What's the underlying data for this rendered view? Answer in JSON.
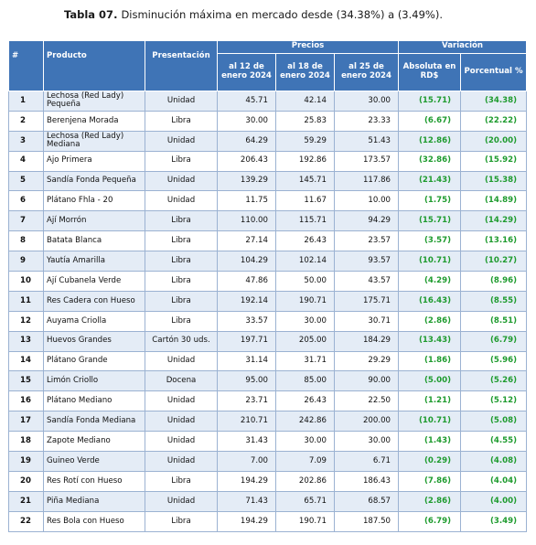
{
  "caption": {
    "label": "Tabla 07.",
    "text": "Disminución máxima en mercado desde (34.38%) a (3.49%)."
  },
  "header": {
    "num": "#",
    "producto": "Producto",
    "presentacion": "Presentación",
    "precios": "Precios",
    "variacion": "Variación",
    "col_fecha1": "al 12 de enero 2024",
    "col_fecha2": "al 18 de enero 2024",
    "col_fecha3": "al 25 de enero 2024",
    "col_absoluta": "Absoluta en RD$",
    "col_porcentual": "Porcentual %"
  },
  "rows": [
    {
      "num": "1",
      "producto": "Lechosa (Red Lady) Pequeña",
      "presentacion": "Unidad",
      "p1": "45.71",
      "p2": "42.14",
      "p3": "30.00",
      "abs": "(15.71)",
      "pct": "(34.38)"
    },
    {
      "num": "2",
      "producto": "Berenjena Morada",
      "presentacion": "Libra",
      "p1": "30.00",
      "p2": "25.83",
      "p3": "23.33",
      "abs": "(6.67)",
      "pct": "(22.22)"
    },
    {
      "num": "3",
      "producto": "Lechosa (Red Lady) Mediana",
      "presentacion": "Unidad",
      "p1": "64.29",
      "p2": "59.29",
      "p3": "51.43",
      "abs": "(12.86)",
      "pct": "(20.00)"
    },
    {
      "num": "4",
      "producto": "Ajo Primera",
      "presentacion": "Libra",
      "p1": "206.43",
      "p2": "192.86",
      "p3": "173.57",
      "abs": "(32.86)",
      "pct": "(15.92)"
    },
    {
      "num": "5",
      "producto": "Sandía Fonda Pequeña",
      "presentacion": "Unidad",
      "p1": "139.29",
      "p2": "145.71",
      "p3": "117.86",
      "abs": "(21.43)",
      "pct": "(15.38)"
    },
    {
      "num": "6",
      "producto": "Plátano Fhla - 20",
      "presentacion": "Unidad",
      "p1": "11.75",
      "p2": "11.67",
      "p3": "10.00",
      "abs": "(1.75)",
      "pct": "(14.89)"
    },
    {
      "num": "7",
      "producto": "Ají Morrón",
      "presentacion": "Libra",
      "p1": "110.00",
      "p2": "115.71",
      "p3": "94.29",
      "abs": "(15.71)",
      "pct": "(14.29)"
    },
    {
      "num": "8",
      "producto": "Batata Blanca",
      "presentacion": "Libra",
      "p1": "27.14",
      "p2": "26.43",
      "p3": "23.57",
      "abs": "(3.57)",
      "pct": "(13.16)"
    },
    {
      "num": "9",
      "producto": "Yautía Amarilla",
      "presentacion": "Libra",
      "p1": "104.29",
      "p2": "102.14",
      "p3": "93.57",
      "abs": "(10.71)",
      "pct": "(10.27)"
    },
    {
      "num": "10",
      "producto": "Ají Cubanela Verde",
      "presentacion": "Libra",
      "p1": "47.86",
      "p2": "50.00",
      "p3": "43.57",
      "abs": "(4.29)",
      "pct": "(8.96)"
    },
    {
      "num": "11",
      "producto": "Res Cadera con Hueso",
      "presentacion": "Libra",
      "p1": "192.14",
      "p2": "190.71",
      "p3": "175.71",
      "abs": "(16.43)",
      "pct": "(8.55)"
    },
    {
      "num": "12",
      "producto": "Auyama Criolla",
      "presentacion": "Libra",
      "p1": "33.57",
      "p2": "30.00",
      "p3": "30.71",
      "abs": "(2.86)",
      "pct": "(8.51)"
    },
    {
      "num": "13",
      "producto": "Huevos Grandes",
      "presentacion": "Cartón 30 uds.",
      "p1": "197.71",
      "p2": "205.00",
      "p3": "184.29",
      "abs": "(13.43)",
      "pct": "(6.79)"
    },
    {
      "num": "14",
      "producto": "Plátano Grande",
      "presentacion": "Unidad",
      "p1": "31.14",
      "p2": "31.71",
      "p3": "29.29",
      "abs": "(1.86)",
      "pct": "(5.96)"
    },
    {
      "num": "15",
      "producto": "Limón Criollo",
      "presentacion": "Docena",
      "p1": "95.00",
      "p2": "85.00",
      "p3": "90.00",
      "abs": "(5.00)",
      "pct": "(5.26)"
    },
    {
      "num": "16",
      "producto": "Plátano Mediano",
      "presentacion": "Unidad",
      "p1": "23.71",
      "p2": "26.43",
      "p3": "22.50",
      "abs": "(1.21)",
      "pct": "(5.12)"
    },
    {
      "num": "17",
      "producto": "Sandía Fonda Mediana",
      "presentacion": "Unidad",
      "p1": "210.71",
      "p2": "242.86",
      "p3": "200.00",
      "abs": "(10.71)",
      "pct": "(5.08)"
    },
    {
      "num": "18",
      "producto": "Zapote Mediano",
      "presentacion": "Unidad",
      "p1": "31.43",
      "p2": "30.00",
      "p3": "30.00",
      "abs": "(1.43)",
      "pct": "(4.55)"
    },
    {
      "num": "19",
      "producto": "Guineo Verde",
      "presentacion": "Unidad",
      "p1": "7.00",
      "p2": "7.09",
      "p3": "6.71",
      "abs": "(0.29)",
      "pct": "(4.08)"
    },
    {
      "num": "20",
      "producto": "Res Rotí con Hueso",
      "presentacion": "Libra",
      "p1": "194.29",
      "p2": "202.86",
      "p3": "186.43",
      "abs": "(7.86)",
      "pct": "(4.04)"
    },
    {
      "num": "21",
      "producto": "Piña Mediana",
      "presentacion": "Unidad",
      "p1": "71.43",
      "p2": "65.71",
      "p3": "68.57",
      "abs": "(2.86)",
      "pct": "(4.00)"
    },
    {
      "num": "22",
      "producto": "Res Bola con Hueso",
      "presentacion": "Libra",
      "p1": "194.29",
      "p2": "190.71",
      "p3": "187.50",
      "abs": "(6.79)",
      "pct": "(3.49)"
    }
  ],
  "colors": {
    "header_bg": "#3f74b6",
    "band_bg": "#e4ecf6",
    "variation_text": "#1e9b2e"
  }
}
